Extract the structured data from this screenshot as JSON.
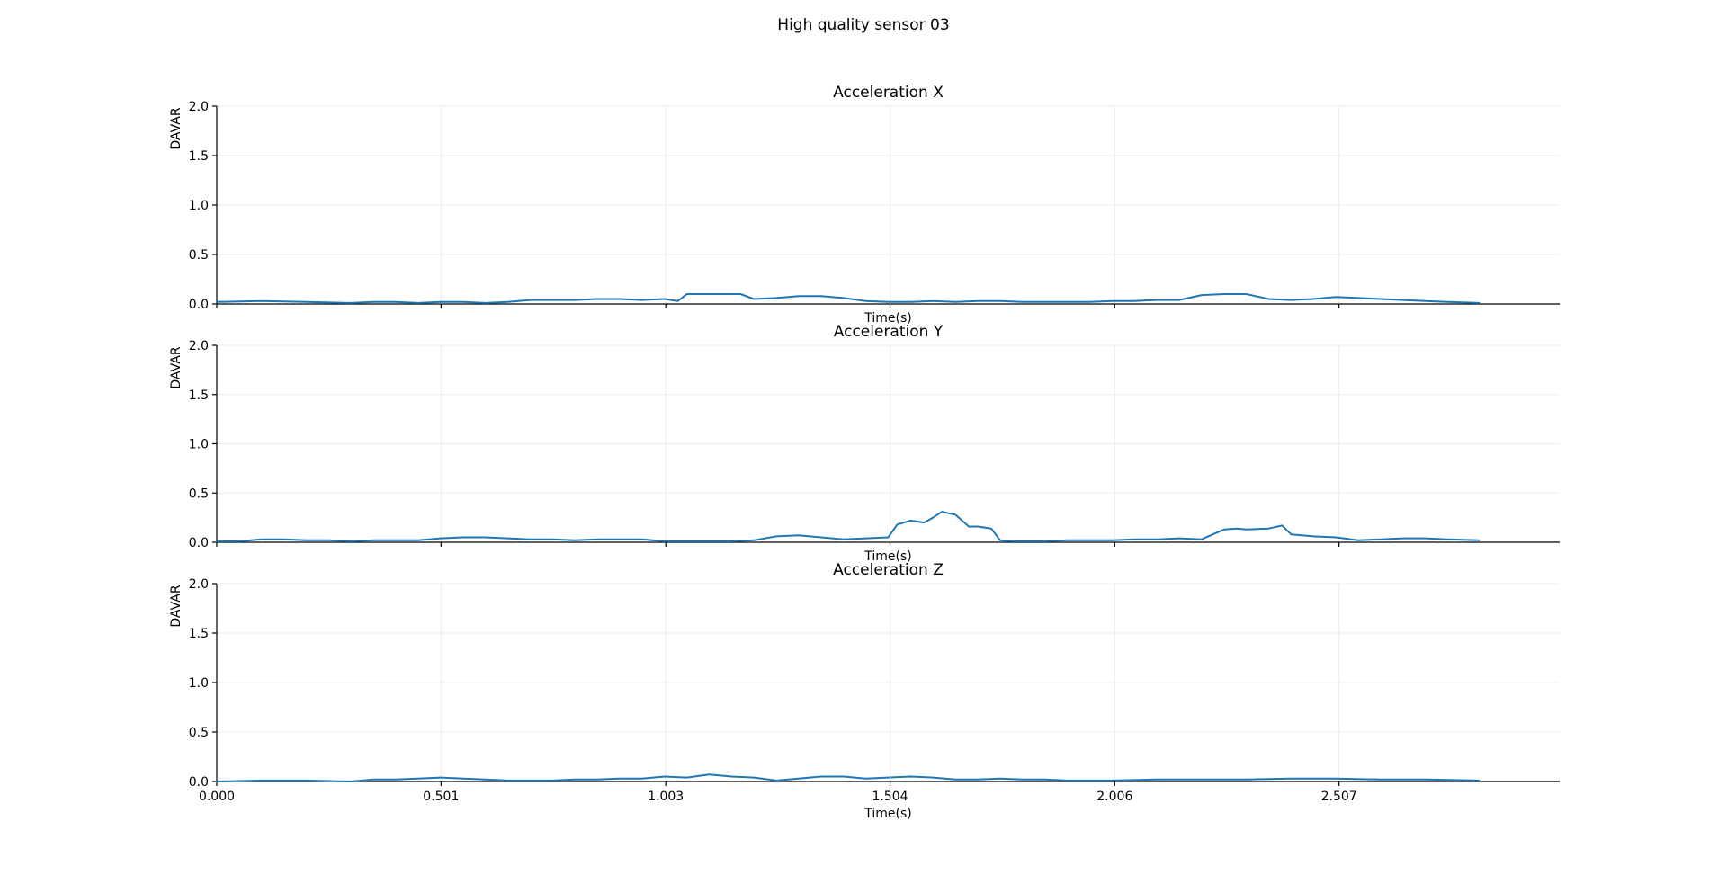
{
  "figure_title": "High quality sensor 03",
  "colors": {
    "series": "#1f77b4",
    "grid": "#ebebeb",
    "axis": "#000000"
  },
  "chart_data": [
    {
      "type": "line",
      "title": "Acceleration X",
      "xlabel": "Time(s)",
      "ylabel": "DAVAR",
      "xlim": [
        0.0,
        3.0
      ],
      "ylim": [
        0.0,
        2.0
      ],
      "xticks": [
        0.0,
        0.501,
        1.003,
        1.504,
        2.006,
        2.507
      ],
      "xtick_labels": [
        "",
        "",
        "",
        "",
        "",
        ""
      ],
      "yticks": [
        0.0,
        0.5,
        1.0,
        1.5,
        2.0
      ],
      "ytick_labels": [
        "0.0",
        "0.5",
        "1.0",
        "1.5",
        "2.0"
      ],
      "grid": true,
      "series": [
        {
          "x": [
            0.0,
            0.1,
            0.2,
            0.3,
            0.35,
            0.4,
            0.45,
            0.5,
            0.55,
            0.6,
            0.65,
            0.7,
            0.75,
            0.8,
            0.85,
            0.9,
            0.95,
            1.0,
            1.03,
            1.05,
            1.1,
            1.15,
            1.17,
            1.2,
            1.25,
            1.3,
            1.35,
            1.4,
            1.45,
            1.5,
            1.55,
            1.6,
            1.65,
            1.7,
            1.75,
            1.8,
            1.85,
            1.9,
            1.95,
            2.0,
            2.05,
            2.1,
            2.15,
            2.2,
            2.25,
            2.3,
            2.35,
            2.4,
            2.45,
            2.5,
            2.55,
            2.6,
            2.65,
            2.7,
            2.75,
            2.82
          ],
          "y": [
            0.02,
            0.03,
            0.02,
            0.01,
            0.02,
            0.02,
            0.01,
            0.02,
            0.02,
            0.01,
            0.02,
            0.04,
            0.04,
            0.04,
            0.05,
            0.05,
            0.04,
            0.05,
            0.03,
            0.1,
            0.1,
            0.1,
            0.1,
            0.05,
            0.06,
            0.08,
            0.08,
            0.06,
            0.03,
            0.02,
            0.02,
            0.03,
            0.02,
            0.03,
            0.03,
            0.02,
            0.02,
            0.02,
            0.02,
            0.03,
            0.03,
            0.04,
            0.04,
            0.09,
            0.1,
            0.1,
            0.05,
            0.04,
            0.05,
            0.07,
            0.06,
            0.05,
            0.04,
            0.03,
            0.02,
            0.01
          ]
        }
      ]
    },
    {
      "type": "line",
      "title": "Acceleration Y",
      "xlabel": "Time(s)",
      "ylabel": "DAVAR",
      "xlim": [
        0.0,
        3.0
      ],
      "ylim": [
        0.0,
        2.0
      ],
      "xticks": [
        0.0,
        0.501,
        1.003,
        1.504,
        2.006,
        2.507
      ],
      "xtick_labels": [
        "",
        "",
        "",
        "",
        "",
        ""
      ],
      "yticks": [
        0.0,
        0.5,
        1.0,
        1.5,
        2.0
      ],
      "ytick_labels": [
        "0.0",
        "0.5",
        "1.0",
        "1.5",
        "2.0"
      ],
      "grid": true,
      "series": [
        {
          "x": [
            0.0,
            0.05,
            0.1,
            0.15,
            0.2,
            0.25,
            0.3,
            0.35,
            0.4,
            0.45,
            0.5,
            0.55,
            0.6,
            0.65,
            0.7,
            0.75,
            0.8,
            0.85,
            0.9,
            0.95,
            1.0,
            1.05,
            1.1,
            1.15,
            1.2,
            1.25,
            1.3,
            1.35,
            1.4,
            1.45,
            1.5,
            1.52,
            1.55,
            1.58,
            1.6,
            1.62,
            1.65,
            1.68,
            1.7,
            1.73,
            1.75,
            1.78,
            1.8,
            1.85,
            1.9,
            1.95,
            2.0,
            2.05,
            2.1,
            2.15,
            2.2,
            2.25,
            2.28,
            2.3,
            2.35,
            2.38,
            2.4,
            2.45,
            2.5,
            2.55,
            2.6,
            2.65,
            2.7,
            2.75,
            2.82
          ],
          "y": [
            0.01,
            0.01,
            0.03,
            0.03,
            0.02,
            0.02,
            0.01,
            0.02,
            0.02,
            0.02,
            0.04,
            0.05,
            0.05,
            0.04,
            0.03,
            0.03,
            0.02,
            0.03,
            0.03,
            0.03,
            0.01,
            0.01,
            0.01,
            0.01,
            0.02,
            0.06,
            0.07,
            0.05,
            0.03,
            0.04,
            0.05,
            0.18,
            0.22,
            0.2,
            0.25,
            0.31,
            0.28,
            0.16,
            0.16,
            0.14,
            0.02,
            0.01,
            0.01,
            0.01,
            0.02,
            0.02,
            0.02,
            0.03,
            0.03,
            0.04,
            0.03,
            0.13,
            0.14,
            0.13,
            0.14,
            0.17,
            0.08,
            0.06,
            0.05,
            0.02,
            0.03,
            0.04,
            0.04,
            0.03,
            0.02
          ]
        }
      ]
    },
    {
      "type": "line",
      "title": "Acceleration Z",
      "xlabel": "Time(s)",
      "ylabel": "DAVAR",
      "xlim": [
        0.0,
        3.0
      ],
      "ylim": [
        0.0,
        2.0
      ],
      "xticks": [
        0.0,
        0.501,
        1.003,
        1.504,
        2.006,
        2.507
      ],
      "xtick_labels": [
        "0.000",
        "0.501",
        "1.003",
        "1.504",
        "2.006",
        "2.507"
      ],
      "yticks": [
        0.0,
        0.5,
        1.0,
        1.5,
        2.0
      ],
      "ytick_labels": [
        "0.0",
        "0.5",
        "1.0",
        "1.5",
        "2.0"
      ],
      "grid": true,
      "series": [
        {
          "x": [
            0.0,
            0.1,
            0.2,
            0.3,
            0.35,
            0.4,
            0.45,
            0.5,
            0.55,
            0.6,
            0.65,
            0.7,
            0.75,
            0.8,
            0.85,
            0.9,
            0.95,
            1.0,
            1.05,
            1.1,
            1.15,
            1.2,
            1.25,
            1.3,
            1.35,
            1.4,
            1.45,
            1.5,
            1.55,
            1.6,
            1.65,
            1.7,
            1.75,
            1.8,
            1.85,
            1.9,
            2.0,
            2.1,
            2.2,
            2.3,
            2.4,
            2.5,
            2.6,
            2.7,
            2.82
          ],
          "y": [
            0.0,
            0.01,
            0.01,
            0.0,
            0.02,
            0.02,
            0.03,
            0.04,
            0.03,
            0.02,
            0.01,
            0.01,
            0.01,
            0.02,
            0.02,
            0.03,
            0.03,
            0.05,
            0.04,
            0.07,
            0.05,
            0.04,
            0.01,
            0.03,
            0.05,
            0.05,
            0.03,
            0.04,
            0.05,
            0.04,
            0.02,
            0.02,
            0.03,
            0.02,
            0.02,
            0.01,
            0.01,
            0.02,
            0.02,
            0.02,
            0.03,
            0.03,
            0.02,
            0.02,
            0.01
          ]
        }
      ]
    }
  ]
}
